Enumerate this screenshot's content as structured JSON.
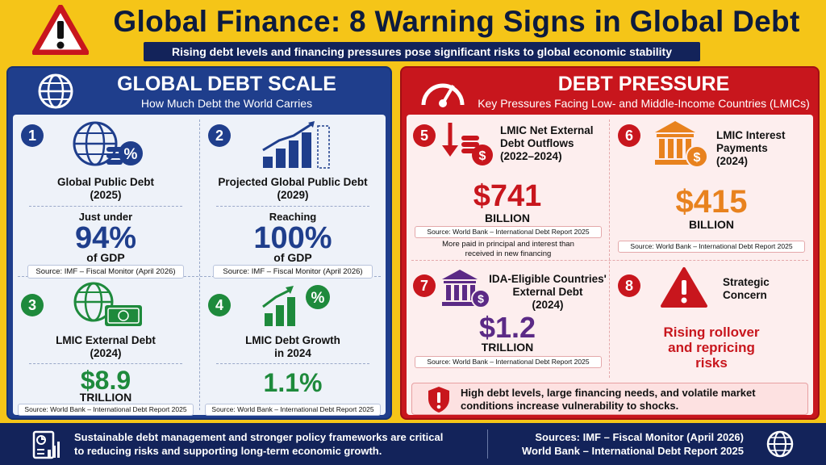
{
  "header": {
    "title": "Global Finance: 8 Warning Signs in Global Debt",
    "subtitle": "Rising debt levels and financing pressures pose significant risks to global economic stability"
  },
  "left": {
    "title": "GLOBAL DEBT SCALE",
    "subtitle": "How Much Debt the World Carries",
    "cards": [
      {
        "num": "1",
        "label1": "Global Public Debt",
        "label2": "(2025)",
        "pre": "Just under",
        "value": "94%",
        "unit": "of GDP",
        "source": "Source: IMF – Fiscal Monitor (April 2026)"
      },
      {
        "num": "2",
        "label1": "Projected Global Public Debt",
        "label2": "(2029)",
        "pre": "Reaching",
        "value": "100%",
        "unit": "of GDP",
        "source": "Source: IMF – Fiscal Monitor (April 2026)"
      },
      {
        "num": "3",
        "label1": "LMIC External Debt",
        "label2": "(2024)",
        "value": "$8.9",
        "unit": "TRILLION",
        "source": "Source: World Bank – International Debt Report 2025"
      },
      {
        "num": "4",
        "label1": "LMIC Debt Growth",
        "label2": "in 2024",
        "value": "1.1%",
        "source": "Source: World Bank – International Debt Report 2025"
      }
    ]
  },
  "right": {
    "title": "DEBT PRESSURE",
    "subtitle": "Key Pressures Facing Low- and Middle-Income Countries (LMICs)",
    "cards": [
      {
        "num": "5",
        "label1": "LMIC Net External",
        "label2": "Debt Outflows",
        "label3": "(2022–2024)",
        "value": "$741",
        "unit": "BILLION",
        "source": "Source: World Bank – International Debt Report 2025",
        "note1": "More paid in principal and interest than",
        "note2": "received in new financing"
      },
      {
        "num": "6",
        "label1": "LMIC Interest",
        "label2": "Payments",
        "label3": "(2024)",
        "value": "$415",
        "unit": "BILLION",
        "source": "Source: World Bank – International Debt Report 2025"
      },
      {
        "num": "7",
        "label1": "IDA-Eligible Countries'",
        "label2": "External Debt",
        "label3": "(2024)",
        "value": "$1.2",
        "unit": "TRILLION",
        "source": "Source: World Bank – International Debt Report 2025"
      },
      {
        "num": "8",
        "label1": "Strategic",
        "label2": "Concern",
        "risk1": "Rising rollover",
        "risk2": "and repricing",
        "risk3": "risks"
      }
    ],
    "alert1": "High debt levels, large financing needs, and volatile market",
    "alert2": "conditions increase vulnerability to shocks."
  },
  "footer": {
    "left1": "Sustainable debt management and stronger policy frameworks are critical",
    "left2": "to reducing risks and supporting long-term economic growth.",
    "right1": "Sources: IMF – Fiscal Monitor (April 2026)",
    "right2": "World Bank – International Debt Report 2025"
  },
  "colors": {
    "navy": "#1f3e8c",
    "red": "#c8161d",
    "yellow": "#f5c518",
    "green": "#1e8a3c",
    "orange": "#e8821e",
    "purple": "#5b2a86"
  }
}
